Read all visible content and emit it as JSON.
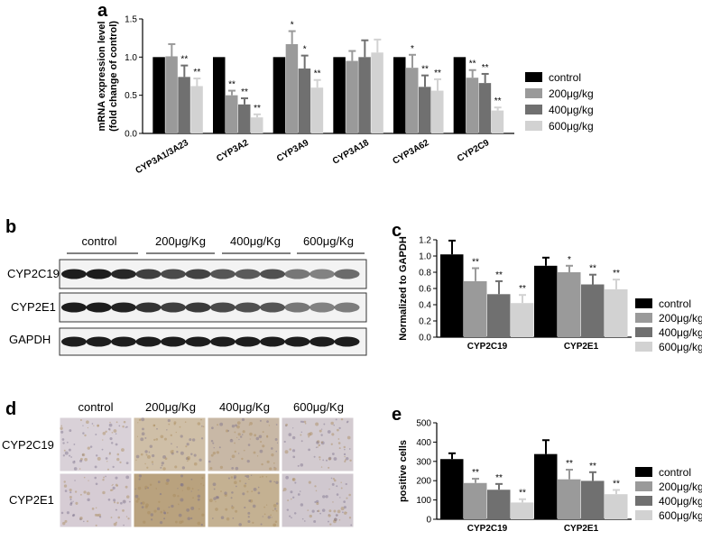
{
  "panels": {
    "a": "a",
    "b": "b",
    "c": "c",
    "d": "d",
    "e": "e"
  },
  "colors": {
    "control": "#000000",
    "200": "#9a9a9a",
    "400": "#707070",
    "600": "#d2d2d2"
  },
  "chart_data": [
    {
      "panel": "a",
      "type": "bar",
      "title": "",
      "ylabel": "mRNA expression level\n(fold change of control)",
      "ylim": [
        0,
        1.5
      ],
      "yticks": [
        "0.0",
        "0.5",
        "1.0",
        "1.5"
      ],
      "categories": [
        "CYP3A1/3A23",
        "CYP3A2",
        "CYP3A9",
        "CYP3A18",
        "CYP3A62",
        "CYP2C9"
      ],
      "legend_position": "right",
      "series": [
        {
          "name": "control",
          "values": [
            1.0,
            1.0,
            1.0,
            1.0,
            1.0,
            1.0
          ],
          "errors": [
            0,
            0,
            0,
            0,
            0,
            0
          ],
          "sig": [
            "",
            "",
            "",
            "",
            "",
            ""
          ]
        },
        {
          "name": "200μg/kg",
          "values": [
            1.01,
            0.5,
            1.17,
            0.95,
            0.86,
            0.73
          ],
          "errors": [
            0.16,
            0.06,
            0.17,
            0.13,
            0.17,
            0.1
          ],
          "sig": [
            "",
            "**",
            "*",
            "",
            "*",
            "**"
          ]
        },
        {
          "name": "400μg/kg",
          "values": [
            0.74,
            0.38,
            0.85,
            1.0,
            0.61,
            0.66
          ],
          "errors": [
            0.15,
            0.08,
            0.17,
            0.22,
            0.15,
            0.12
          ],
          "sig": [
            "**",
            "**",
            "*",
            "",
            "**",
            "**"
          ]
        },
        {
          "name": "600μg/kg",
          "values": [
            0.62,
            0.21,
            0.6,
            1.06,
            0.56,
            0.3
          ],
          "errors": [
            0.1,
            0.04,
            0.1,
            0.17,
            0.15,
            0.04
          ],
          "sig": [
            "**",
            "**",
            "**",
            "",
            "**",
            "**"
          ]
        }
      ]
    },
    {
      "panel": "c",
      "type": "bar",
      "title": "",
      "ylabel": "Normalized to GAPDH",
      "ylim": [
        0,
        1.2
      ],
      "yticks": [
        "0.0",
        "0.2",
        "0.4",
        "0.6",
        "0.8",
        "1.0",
        "1.2"
      ],
      "categories": [
        "CYP2C19",
        "CYP2E1"
      ],
      "legend_position": "right",
      "series": [
        {
          "name": "control",
          "values": [
            1.02,
            0.88
          ],
          "errors": [
            0.17,
            0.1
          ],
          "sig": [
            "",
            ""
          ]
        },
        {
          "name": "200μg/kg",
          "values": [
            0.69,
            0.8
          ],
          "errors": [
            0.16,
            0.08
          ],
          "sig": [
            "**",
            "*"
          ]
        },
        {
          "name": "400μg/kg",
          "values": [
            0.53,
            0.65
          ],
          "errors": [
            0.16,
            0.12
          ],
          "sig": [
            "**",
            "**"
          ]
        },
        {
          "name": "600μg/kg",
          "values": [
            0.42,
            0.59
          ],
          "errors": [
            0.1,
            0.12
          ],
          "sig": [
            "**",
            "**"
          ]
        }
      ]
    },
    {
      "panel": "e",
      "type": "bar",
      "title": "",
      "ylabel": "positive cells",
      "ylim": [
        0,
        500
      ],
      "yticks": [
        "0",
        "100",
        "200",
        "300",
        "400",
        "500"
      ],
      "categories": [
        "CYP2C19",
        "CYP2E1"
      ],
      "legend_position": "right",
      "series": [
        {
          "name": "control",
          "values": [
            312,
            338
          ],
          "errors": [
            30,
            72
          ],
          "sig": [
            "",
            ""
          ]
        },
        {
          "name": "200μg/kg",
          "values": [
            188,
            207
          ],
          "errors": [
            22,
            50
          ],
          "sig": [
            "**",
            "**"
          ]
        },
        {
          "name": "400μg/kg",
          "values": [
            153,
            199
          ],
          "errors": [
            30,
            45
          ],
          "sig": [
            "**",
            "**"
          ]
        },
        {
          "name": "600μg/kg",
          "values": [
            87,
            130
          ],
          "errors": [
            17,
            22
          ],
          "sig": [
            "**",
            "**"
          ]
        }
      ]
    }
  ],
  "western": {
    "groups": [
      "control",
      "200μg/Kg",
      "400μg/Kg",
      "600μg/Kg"
    ],
    "rows": [
      "CYP2C19",
      "CYP2E1",
      "GAPDH"
    ]
  },
  "ihc": {
    "groups": [
      "control",
      "200μg/Kg",
      "400μg/Kg",
      "600μg/Kg"
    ],
    "rows": [
      "CYP2C19",
      "CYP2E1"
    ]
  }
}
